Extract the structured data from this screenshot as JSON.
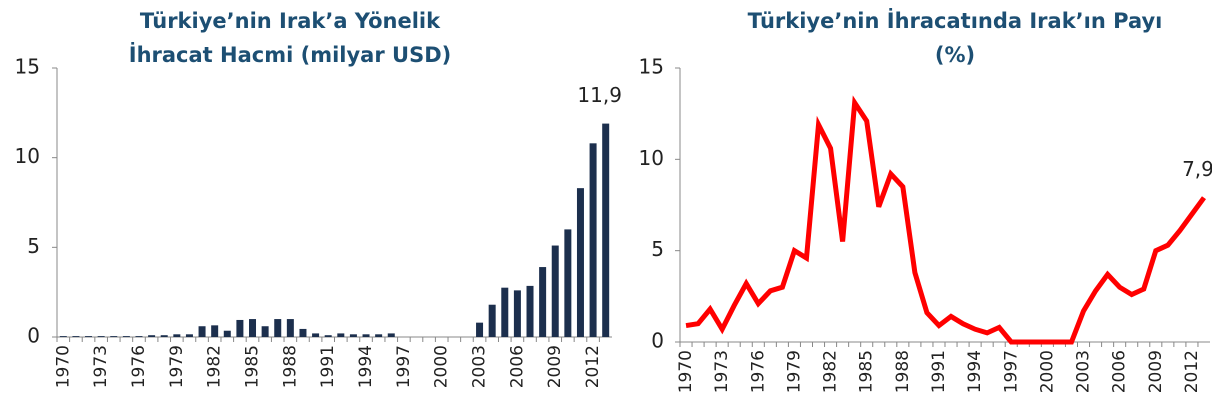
{
  "chart_data": [
    {
      "type": "bar",
      "title": "Türkiye’nin Irak’a Yönelik İhracat Hacmi (milyar USD)",
      "categories": [
        1970,
        null,
        null,
        1973,
        null,
        null,
        1976,
        null,
        null,
        1979,
        null,
        null,
        1982,
        null,
        null,
        1985,
        null,
        null,
        1988,
        null,
        null,
        1991,
        null,
        null,
        1994,
        null,
        null,
        1997,
        null,
        null,
        2000,
        null,
        null,
        2003,
        null,
        null,
        2006,
        null,
        null,
        2009,
        null,
        null,
        2012,
        null
      ],
      "values": [
        0.05,
        0.05,
        0.05,
        0.05,
        0.05,
        0.05,
        0.05,
        0.1,
        0.1,
        0.15,
        0.15,
        0.6,
        0.65,
        0.35,
        0.95,
        1.0,
        0.6,
        1.0,
        1.0,
        0.45,
        0.2,
        0.1,
        0.2,
        0.15,
        0.15,
        0.15,
        0.2,
        0,
        0,
        0,
        0,
        0,
        0,
        0.8,
        1.8,
        2.75,
        2.6,
        2.85,
        3.9,
        5.1,
        6.0,
        8.3,
        10.8,
        11.9
      ],
      "value_labels": [
        null,
        null,
        null,
        null,
        null,
        null,
        null,
        null,
        null,
        null,
        null,
        null,
        null,
        null,
        null,
        null,
        null,
        null,
        null,
        null,
        null,
        null,
        null,
        null,
        null,
        null,
        null,
        null,
        null,
        null,
        null,
        null,
        null,
        null,
        null,
        null,
        null,
        null,
        null,
        null,
        null,
        null,
        null,
        "11,9"
      ],
      "color": "#1c2f4d",
      "ylim": [
        0,
        15
      ],
      "yticks": [
        0,
        5,
        10,
        15
      ]
    },
    {
      "type": "line",
      "title": "Türkiye’nin İhracatında Irak’ın Payı (%)",
      "categories": [
        1970,
        null,
        null,
        1973,
        null,
        null,
        1976,
        null,
        null,
        1979,
        null,
        null,
        1982,
        null,
        null,
        1985,
        null,
        null,
        1988,
        null,
        null,
        1991,
        null,
        null,
        1994,
        null,
        null,
        1997,
        null,
        null,
        2000,
        null,
        null,
        2003,
        null,
        null,
        2006,
        null,
        null,
        2009,
        null,
        null,
        2012,
        null
      ],
      "values": [
        0.9,
        1.0,
        1.8,
        0.7,
        2.0,
        3.2,
        2.1,
        2.8,
        3.0,
        5.0,
        4.6,
        11.9,
        10.6,
        5.5,
        13.1,
        12.1,
        7.4,
        9.2,
        8.5,
        3.8,
        1.6,
        0.9,
        1.4,
        1.0,
        0.7,
        0.5,
        0.8,
        0,
        0,
        0,
        0,
        0,
        0,
        1.7,
        2.8,
        3.7,
        3.0,
        2.6,
        2.9,
        5.0,
        5.3,
        6.1,
        7.0,
        7.9
      ],
      "value_labels": [
        null,
        null,
        null,
        null,
        null,
        null,
        null,
        null,
        null,
        null,
        null,
        null,
        null,
        null,
        null,
        null,
        null,
        null,
        null,
        null,
        null,
        null,
        null,
        null,
        null,
        null,
        null,
        null,
        null,
        null,
        null,
        null,
        null,
        null,
        null,
        null,
        null,
        null,
        null,
        null,
        null,
        null,
        null,
        "7,9"
      ],
      "color": "#ff0000",
      "ylim": [
        0,
        15
      ],
      "yticks": [
        0,
        5,
        10,
        15
      ]
    }
  ]
}
